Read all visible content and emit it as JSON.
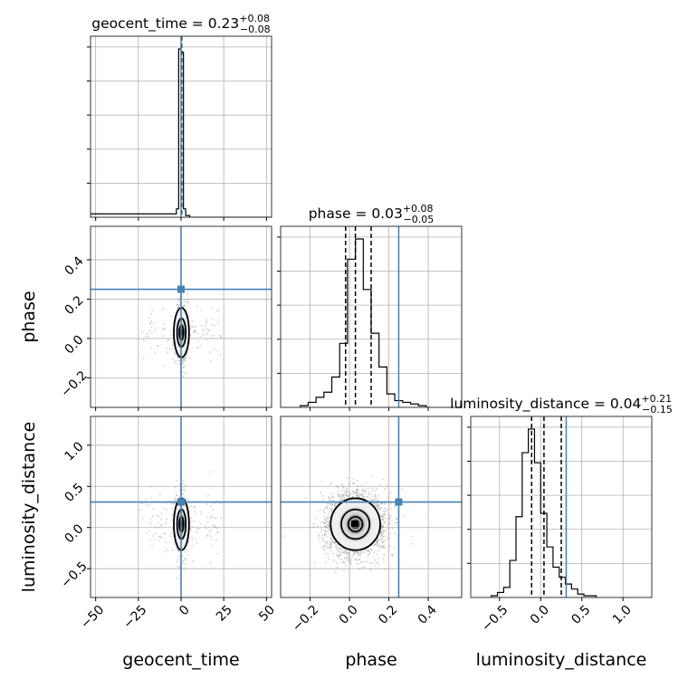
{
  "chart_data": {
    "type": "corner",
    "parameters": [
      "geocent_time",
      "phase",
      "luminosity_distance"
    ],
    "axis_labels": [
      "geocent_time",
      "phase",
      "luminosity_distance"
    ],
    "ranges": {
      "geocent_time": [
        -53,
        53
      ],
      "phase": [
        -0.35,
        0.57
      ],
      "luminosity_distance": [
        -0.85,
        1.35
      ]
    },
    "ticks": {
      "geocent_time": [
        -50,
        -25,
        0,
        25,
        50
      ],
      "phase": [
        -0.2,
        0.0,
        0.2,
        0.4
      ],
      "luminosity_distance": [
        -0.5,
        0.0,
        0.5,
        1.0
      ]
    },
    "tick_labels": {
      "geocent_time": [
        "−50",
        "−25",
        "0",
        "25",
        "50"
      ],
      "phase": [
        "−0.2",
        "0.0",
        "0.2",
        "0.4"
      ],
      "luminosity_distance": [
        "−0.5",
        "0.0",
        "0.5",
        "1.0"
      ]
    },
    "titles": [
      {
        "name": "geocent_time",
        "prefix": "geocent_time = 0.23",
        "plus": "+0.08",
        "minus": "−0.08"
      },
      {
        "name": "phase",
        "prefix": "phase = 0.03",
        "plus": "+0.08",
        "minus": "−0.05"
      },
      {
        "name": "luminosity_distance",
        "prefix": "luminosity_distance = 0.04",
        "plus": "+0.21",
        "minus": "−0.15"
      }
    ],
    "truths": {
      "geocent_time": 0.0,
      "phase": 0.25,
      "luminosity_distance": 0.31
    },
    "quantiles": {
      "geocent_time": [
        0.15,
        0.23,
        0.31
      ],
      "phase": [
        -0.02,
        0.03,
        0.11
      ],
      "luminosity_distance": [
        -0.11,
        0.04,
        0.25
      ]
    },
    "histograms": {
      "geocent_time": {
        "edges": [
          -53,
          -2.7,
          -1.4,
          0,
          1.4,
          2.7,
          5.1,
          53
        ],
        "counts": [
          0.02,
          0.05,
          1.0,
          0.98,
          0.05,
          0.01,
          0
        ]
      },
      "phase": {
        "x0": -0.25,
        "bin_width": 0.04,
        "counts": [
          0.01,
          0.03,
          0.06,
          0.09,
          0.18,
          0.38,
          0.88,
          1.0,
          0.7,
          0.44,
          0.24,
          0.08,
          0.04,
          0.03,
          0.02,
          0.01
        ]
      },
      "luminosity_distance": {
        "x0": -0.6,
        "bin_width": 0.075,
        "counts": [
          0.01,
          0.03,
          0.06,
          0.22,
          0.48,
          0.86,
          1.0,
          0.8,
          0.5,
          0.3,
          0.18,
          0.12,
          0.08,
          0.05,
          0.02,
          0.01,
          0.01
        ]
      }
    },
    "samples_2d": {
      "geocent_time_vs_phase": {
        "center": [
          0.23,
          0.03
        ],
        "sigma": [
          1.2,
          0.06
        ]
      },
      "geocent_time_vs_luminosity_distance": {
        "center": [
          0.23,
          0.04
        ],
        "sigma": [
          1.2,
          0.15
        ]
      },
      "phase_vs_luminosity_distance": {
        "center": [
          0.03,
          0.04
        ],
        "sigma": [
          0.06,
          0.15
        ]
      }
    },
    "colors": {
      "truth": "#4682b4",
      "hist": "#000000",
      "scatter": "#9a9a9a"
    },
    "grid": true
  }
}
